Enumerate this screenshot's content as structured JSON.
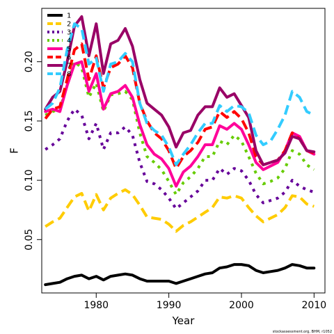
{
  "chart_data": {
    "type": "line",
    "title": "",
    "xlabel": "Year",
    "ylabel": "F",
    "xlim": [
      1972.5,
      2011.5
    ],
    "ylim": [
      0.005,
      0.245
    ],
    "x_ticks": [
      "1980",
      "1990",
      "2000",
      "2010"
    ],
    "y_ticks": [
      "0.05",
      "0.10",
      "0.15",
      "0.20"
    ],
    "legend_position": "top-left",
    "credit": "stockassessment.org, BHM, r1052",
    "x": [
      1973,
      1974,
      1975,
      1976,
      1977,
      1978,
      1979,
      1980,
      1981,
      1982,
      1983,
      1984,
      1985,
      1986,
      1987,
      1988,
      1989,
      1990,
      1991,
      1992,
      1993,
      1994,
      1995,
      1996,
      1997,
      1998,
      1999,
      2000,
      2001,
      2002,
      2003,
      2004,
      2005,
      2006,
      2007,
      2008,
      2009,
      2010
    ],
    "series": [
      {
        "name": "1",
        "color": "#000000",
        "dash": "solid",
        "values": [
          0.012,
          0.013,
          0.014,
          0.017,
          0.019,
          0.02,
          0.017,
          0.019,
          0.016,
          0.019,
          0.02,
          0.021,
          0.02,
          0.017,
          0.015,
          0.015,
          0.015,
          0.015,
          0.013,
          0.015,
          0.017,
          0.019,
          0.021,
          0.022,
          0.026,
          0.027,
          0.029,
          0.029,
          0.028,
          0.024,
          0.022,
          0.023,
          0.024,
          0.026,
          0.029,
          0.028,
          0.026,
          0.026
        ]
      },
      {
        "name": "2",
        "color": "#ffcc00",
        "dash": "dashed",
        "values": [
          0.061,
          0.065,
          0.068,
          0.077,
          0.086,
          0.089,
          0.074,
          0.088,
          0.075,
          0.085,
          0.089,
          0.092,
          0.088,
          0.079,
          0.069,
          0.068,
          0.067,
          0.063,
          0.057,
          0.062,
          0.065,
          0.069,
          0.073,
          0.077,
          0.086,
          0.085,
          0.087,
          0.085,
          0.077,
          0.07,
          0.065,
          0.068,
          0.071,
          0.077,
          0.087,
          0.086,
          0.08,
          0.078
        ]
      },
      {
        "name": "3",
        "color": "#660099",
        "dash": "dotted",
        "values": [
          0.126,
          0.13,
          0.135,
          0.15,
          0.16,
          0.155,
          0.135,
          0.148,
          0.126,
          0.14,
          0.14,
          0.145,
          0.138,
          0.115,
          0.099,
          0.097,
          0.092,
          0.085,
          0.076,
          0.081,
          0.086,
          0.091,
          0.1,
          0.1,
          0.11,
          0.105,
          0.11,
          0.108,
          0.1,
          0.088,
          0.081,
          0.083,
          0.085,
          0.09,
          0.1,
          0.095,
          0.092,
          0.09
        ]
      },
      {
        "name": "4",
        "color": "#66cc00",
        "dash": "dotted",
        "values": [
          0.155,
          0.158,
          0.16,
          0.18,
          0.2,
          0.195,
          0.17,
          0.182,
          0.158,
          0.172,
          0.173,
          0.175,
          0.168,
          0.14,
          0.12,
          0.115,
          0.109,
          0.099,
          0.088,
          0.098,
          0.103,
          0.11,
          0.12,
          0.12,
          0.133,
          0.13,
          0.138,
          0.133,
          0.12,
          0.106,
          0.097,
          0.099,
          0.102,
          0.11,
          0.125,
          0.122,
          0.113,
          0.109
        ]
      },
      {
        "name": "5",
        "color": "#ff0099",
        "dash": "solid",
        "values": [
          0.158,
          0.16,
          0.158,
          0.18,
          0.198,
          0.2,
          0.175,
          0.19,
          0.16,
          0.173,
          0.175,
          0.18,
          0.17,
          0.147,
          0.13,
          0.122,
          0.118,
          0.11,
          0.095,
          0.107,
          0.112,
          0.12,
          0.13,
          0.13,
          0.146,
          0.143,
          0.148,
          0.143,
          0.13,
          0.115,
          0.109,
          0.112,
          0.115,
          0.125,
          0.14,
          0.137,
          0.125,
          0.122
        ]
      },
      {
        "name": "6",
        "color": "#ff0000",
        "dash": "dashed",
        "values": [
          0.152,
          0.16,
          0.162,
          0.185,
          0.21,
          0.215,
          0.185,
          0.205,
          0.178,
          0.195,
          0.198,
          0.205,
          0.195,
          0.165,
          0.15,
          0.14,
          0.135,
          0.125,
          0.11,
          0.12,
          0.125,
          0.132,
          0.143,
          0.145,
          0.158,
          0.153,
          0.158,
          0.152,
          0.14,
          0.12,
          0.113,
          0.115,
          0.117,
          0.125,
          0.14,
          0.135,
          0.125,
          0.123
        ]
      },
      {
        "name": "7",
        "color": "#990066",
        "dash": "solid",
        "values": [
          0.16,
          0.17,
          0.175,
          0.2,
          0.23,
          0.238,
          0.205,
          0.232,
          0.19,
          0.215,
          0.218,
          0.228,
          0.213,
          0.185,
          0.165,
          0.16,
          0.155,
          0.145,
          0.128,
          0.14,
          0.142,
          0.155,
          0.162,
          0.162,
          0.178,
          0.17,
          0.173,
          0.163,
          0.153,
          0.125,
          0.113,
          0.115,
          0.117,
          0.123,
          0.137,
          0.135,
          0.125,
          0.124
        ]
      },
      {
        "name": "8",
        "color": "#33ccff",
        "dash": "dashed",
        "values": [
          0.16,
          0.165,
          0.178,
          0.21,
          0.232,
          0.228,
          0.198,
          0.203,
          0.175,
          0.198,
          0.2,
          0.207,
          0.2,
          0.165,
          0.148,
          0.142,
          0.138,
          0.128,
          0.113,
          0.122,
          0.13,
          0.14,
          0.148,
          0.148,
          0.163,
          0.158,
          0.163,
          0.162,
          0.157,
          0.138,
          0.13,
          0.133,
          0.143,
          0.155,
          0.175,
          0.17,
          0.158,
          0.155
        ]
      }
    ]
  }
}
